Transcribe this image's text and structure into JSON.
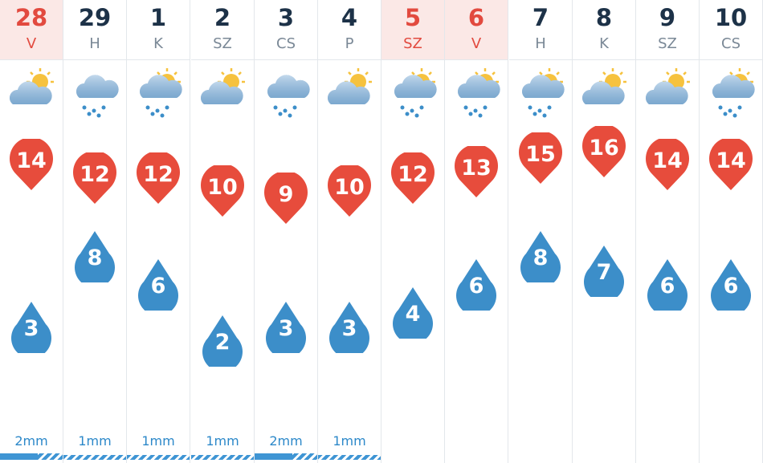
{
  "days": [
    {
      "date": "28",
      "day": "V",
      "weekend": true,
      "icon": "sun-cloud-icon",
      "max": "14",
      "min": "3",
      "rain": "2mm"
    },
    {
      "date": "29",
      "day": "H",
      "weekend": false,
      "icon": "rain-cloud-icon",
      "max": "12",
      "min": "8",
      "rain": "1mm"
    },
    {
      "date": "1",
      "day": "K",
      "weekend": false,
      "icon": "sun-rain-icon",
      "max": "12",
      "min": "6",
      "rain": "1mm"
    },
    {
      "date": "2",
      "day": "SZ",
      "weekend": false,
      "icon": "sun-cloud-icon",
      "max": "10",
      "min": "2",
      "rain": "1mm"
    },
    {
      "date": "3",
      "day": "CS",
      "weekend": false,
      "icon": "rain-cloud-icon",
      "max": "9",
      "min": "3",
      "rain": "2mm"
    },
    {
      "date": "4",
      "day": "P",
      "weekend": false,
      "icon": "sun-cloud-icon",
      "max": "10",
      "min": "3",
      "rain": "1mm"
    },
    {
      "date": "5",
      "day": "SZ",
      "weekend": true,
      "icon": "sun-rain-icon",
      "max": "12",
      "min": "4",
      "rain": ""
    },
    {
      "date": "6",
      "day": "V",
      "weekend": true,
      "icon": "sun-rain-icon",
      "max": "13",
      "min": "6",
      "rain": ""
    },
    {
      "date": "7",
      "day": "H",
      "weekend": false,
      "icon": "sun-rain-icon",
      "max": "15",
      "min": "8",
      "rain": ""
    },
    {
      "date": "8",
      "day": "K",
      "weekend": false,
      "icon": "sun-cloud-icon",
      "max": "16",
      "min": "7",
      "rain": ""
    },
    {
      "date": "9",
      "day": "SZ",
      "weekend": false,
      "icon": "sun-cloud-icon",
      "max": "14",
      "min": "6",
      "rain": ""
    },
    {
      "date": "10",
      "day": "CS",
      "weekend": false,
      "icon": "sun-rain-icon",
      "max": "14",
      "min": "6",
      "rain": ""
    }
  ],
  "colors": {
    "max_pin": "#e74c3c",
    "min_drop": "#3c8ec9",
    "weekend_bg": "#fbe8e6",
    "weekend_text": "#e24a3f"
  }
}
